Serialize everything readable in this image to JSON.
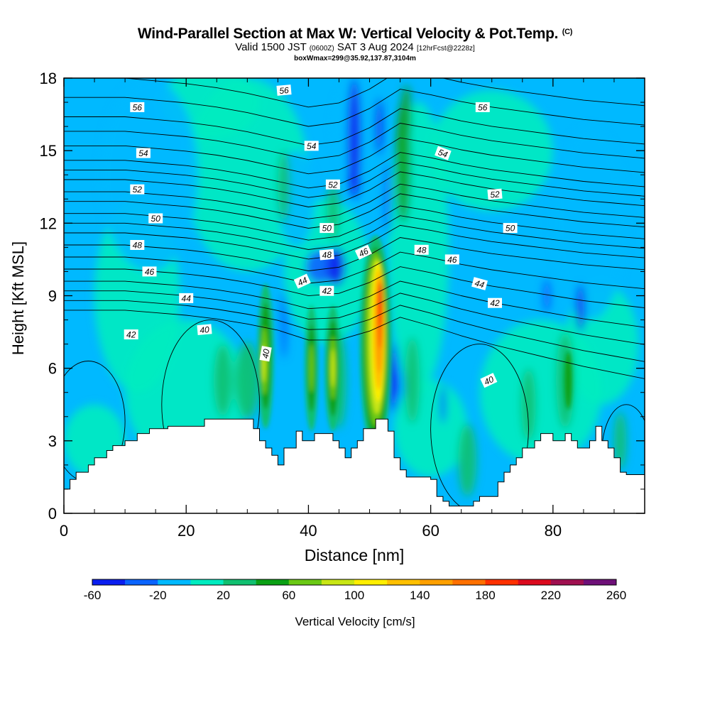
{
  "header": {
    "title_main": "Wind-Parallel Section at Max W: Vertical Velocity & Pot.Temp.",
    "title_copyright": "(C)",
    "valid_prefix": "Valid 1500 JST",
    "valid_utc": "(0600Z)",
    "valid_date": "SAT 3 Aug 2024",
    "forecast_info": "[12hrFcst@2228z]",
    "box_info": "boxWmax=299@35.92,137.87,3104m"
  },
  "colorbar": {
    "label": "Vertical Velocity [cm/s]",
    "tick_labels": [
      "-60",
      "-20",
      "20",
      "60",
      "100",
      "140",
      "180",
      "220",
      "260"
    ],
    "colors": [
      "#0a1ef0",
      "#0a64ff",
      "#00b9ff",
      "#00ecc0",
      "#10c070",
      "#0aa014",
      "#6ac814",
      "#c8e614",
      "#ffee00",
      "#ffc000",
      "#ffa000",
      "#ff7000",
      "#ff3000",
      "#dc0a1e",
      "#a01050",
      "#6e1078"
    ]
  },
  "chart_data": {
    "type": "heatmap",
    "title": "Wind-Parallel Section at Max W: Vertical Velocity & Pot.Temp.",
    "xlabel": "Distance [nm]",
    "ylabel": "Height [Kft MSL]",
    "xlim": [
      0,
      95
    ],
    "ylim": [
      0,
      18
    ],
    "xticks": [
      0,
      20,
      40,
      60,
      80
    ],
    "yticks": [
      0,
      3,
      6,
      9,
      12,
      15,
      18
    ],
    "color_scale": {
      "variable": "Vertical Velocity",
      "units": "cm/s",
      "min": -60,
      "max": 260,
      "step": 20
    },
    "contour_field": "Pot.Temp.",
    "contour_labels": [
      "56",
      "56",
      "56",
      "54",
      "54",
      "54",
      "52",
      "52",
      "52",
      "50",
      "50",
      "50",
      "48",
      "48",
      "48",
      "46",
      "46",
      "46",
      "44",
      "44",
      "44",
      "42",
      "42",
      "42",
      "40",
      "40",
      "40"
    ],
    "terrain_height_kft": [
      [
        0,
        1.0
      ],
      [
        1,
        1.0
      ],
      [
        1,
        1.4
      ],
      [
        2,
        1.4
      ],
      [
        2,
        1.7
      ],
      [
        4,
        1.7
      ],
      [
        4,
        2.0
      ],
      [
        5,
        2.0
      ],
      [
        5,
        2.3
      ],
      [
        7,
        2.3
      ],
      [
        7,
        2.6
      ],
      [
        8,
        2.6
      ],
      [
        8,
        2.8
      ],
      [
        10,
        2.8
      ],
      [
        10,
        3.0
      ],
      [
        12,
        3.0
      ],
      [
        12,
        3.3
      ],
      [
        14,
        3.3
      ],
      [
        14,
        3.5
      ],
      [
        17,
        3.5
      ],
      [
        17,
        3.6
      ],
      [
        23,
        3.6
      ],
      [
        23,
        3.9
      ],
      [
        31,
        3.9
      ],
      [
        31,
        3.5
      ],
      [
        32,
        3.5
      ],
      [
        32,
        3.0
      ],
      [
        33,
        3.0
      ],
      [
        33,
        2.7
      ],
      [
        34,
        2.7
      ],
      [
        34,
        2.4
      ],
      [
        35,
        2.4
      ],
      [
        35,
        2.0
      ],
      [
        36,
        2.0
      ],
      [
        36,
        2.7
      ],
      [
        38,
        2.7
      ],
      [
        38,
        3.4
      ],
      [
        39,
        3.4
      ],
      [
        39,
        3.0
      ],
      [
        41,
        3.0
      ],
      [
        41,
        3.3
      ],
      [
        44,
        3.3
      ],
      [
        44,
        3.0
      ],
      [
        45,
        3.0
      ],
      [
        45,
        2.7
      ],
      [
        46,
        2.7
      ],
      [
        46,
        2.3
      ],
      [
        47,
        2.3
      ],
      [
        47,
        2.7
      ],
      [
        48,
        2.7
      ],
      [
        48,
        3.0
      ],
      [
        49,
        3.0
      ],
      [
        49,
        3.5
      ],
      [
        51,
        3.5
      ],
      [
        51,
        3.9
      ],
      [
        53,
        3.9
      ],
      [
        53,
        3.4
      ],
      [
        54,
        3.4
      ],
      [
        54,
        2.3
      ],
      [
        55,
        2.3
      ],
      [
        55,
        1.8
      ],
      [
        56,
        1.8
      ],
      [
        56,
        1.5
      ],
      [
        60,
        1.5
      ],
      [
        60,
        1.4
      ],
      [
        61,
        1.4
      ],
      [
        61,
        0.7
      ],
      [
        62,
        0.7
      ],
      [
        62,
        0.5
      ],
      [
        63,
        0.5
      ],
      [
        63,
        0.3
      ],
      [
        67,
        0.3
      ],
      [
        67,
        0.5
      ],
      [
        68,
        0.5
      ],
      [
        68,
        0.7
      ],
      [
        71,
        0.7
      ],
      [
        71,
        1.3
      ],
      [
        72,
        1.3
      ],
      [
        72,
        1.7
      ],
      [
        73,
        1.7
      ],
      [
        73,
        2.0
      ],
      [
        74,
        2.0
      ],
      [
        74,
        2.3
      ],
      [
        75,
        2.3
      ],
      [
        75,
        2.7
      ],
      [
        77,
        2.7
      ],
      [
        77,
        3.0
      ],
      [
        78,
        3.0
      ],
      [
        78,
        3.3
      ],
      [
        80,
        3.3
      ],
      [
        80,
        3.0
      ],
      [
        82,
        3.0
      ],
      [
        82,
        3.3
      ],
      [
        83,
        3.3
      ],
      [
        83,
        3.0
      ],
      [
        84,
        3.0
      ],
      [
        84,
        2.7
      ],
      [
        86,
        2.7
      ],
      [
        86,
        3.0
      ],
      [
        87,
        3.0
      ],
      [
        87,
        3.6
      ],
      [
        88,
        3.6
      ],
      [
        88,
        3.0
      ],
      [
        89,
        3.0
      ],
      [
        89,
        2.7
      ],
      [
        90,
        2.7
      ],
      [
        90,
        2.3
      ],
      [
        91,
        2.3
      ],
      [
        91,
        1.7
      ],
      [
        92,
        1.7
      ],
      [
        92,
        1.6
      ],
      [
        95,
        1.6
      ]
    ]
  }
}
